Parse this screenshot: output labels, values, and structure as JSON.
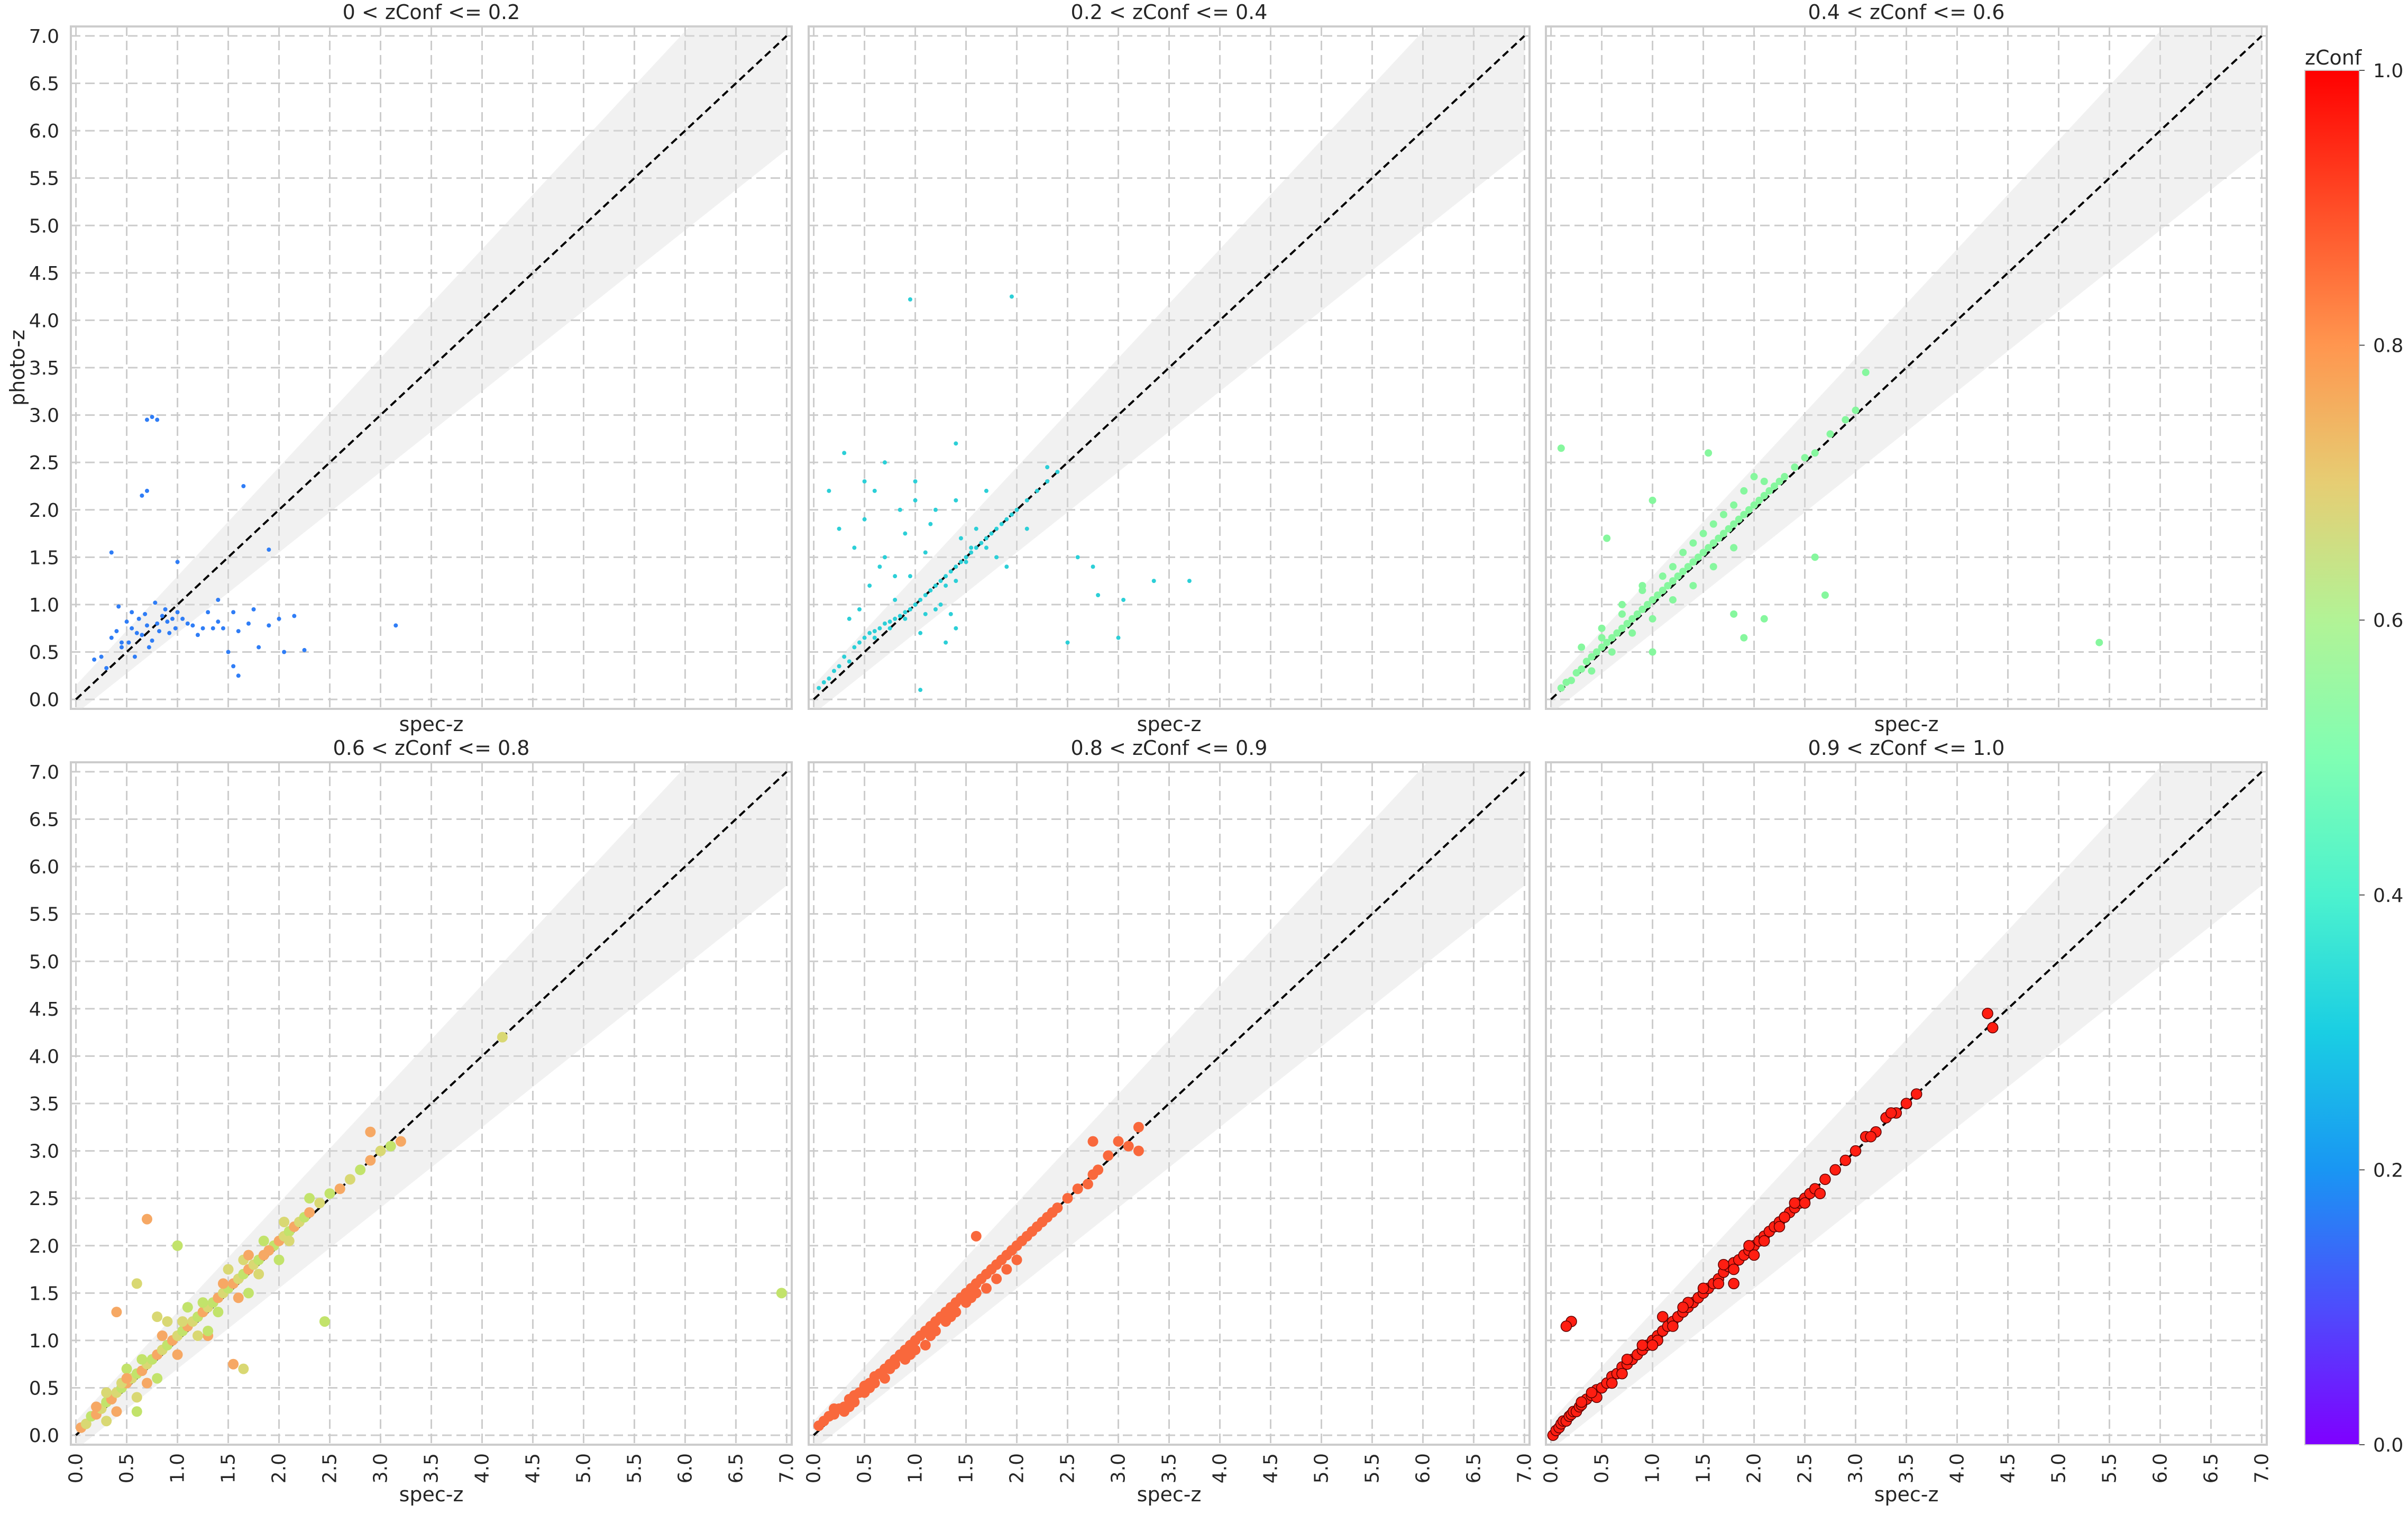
{
  "figure": {
    "colorbar": {
      "label": "zConf",
      "ticks": [
        "0.0",
        "0.2",
        "0.4",
        "0.6",
        "0.8",
        "1.0"
      ],
      "range": [
        0.0,
        1.0
      ],
      "colormap": "rainbow"
    }
  },
  "chart_data": [
    {
      "type": "scatter",
      "title": "0 < zConf <= 0.2",
      "xlabel": "spec-z",
      "ylabel": "photo-z",
      "xlim": [
        -0.05,
        7.05
      ],
      "ylim": [
        -0.1,
        7.1
      ],
      "xticks": [
        "0.0",
        "0.5",
        "1.0",
        "1.5",
        "2.0",
        "2.5",
        "3.0",
        "3.5",
        "4.0",
        "4.5",
        "5.0",
        "5.5",
        "6.0",
        "6.5",
        "7.0"
      ],
      "yticks": [
        "0.0",
        "0.5",
        "1.0",
        "1.5",
        "2.0",
        "2.5",
        "3.0",
        "3.5",
        "4.0",
        "4.5",
        "5.0",
        "5.5",
        "6.0",
        "6.5",
        "7.0"
      ],
      "grid": true,
      "identity_line": true,
      "band": "photo-z = spec-z ± 0.15(1+spec-z)",
      "point_color": "#2f7df6",
      "point_size": "small",
      "x": [
        0.18,
        0.25,
        0.3,
        0.35,
        0.4,
        0.42,
        0.45,
        0.5,
        0.52,
        0.55,
        0.58,
        0.6,
        0.62,
        0.65,
        0.68,
        0.7,
        0.72,
        0.75,
        0.78,
        0.8,
        0.82,
        0.85,
        0.88,
        0.9,
        0.92,
        0.95,
        0.98,
        1.0,
        1.05,
        1.1,
        1.15,
        1.2,
        1.25,
        1.3,
        1.35,
        1.4,
        1.45,
        1.5,
        1.55,
        1.6,
        1.7,
        1.75,
        1.8,
        1.9,
        2.0,
        2.05,
        2.15,
        2.25,
        0.35,
        0.55,
        0.7,
        0.75,
        0.8,
        0.65,
        0.7,
        1.65,
        1.9,
        3.15,
        1.55,
        1.6,
        1.0,
        1.4,
        0.45
      ],
      "y": [
        0.42,
        0.45,
        0.33,
        0.65,
        0.72,
        0.98,
        0.55,
        0.82,
        0.6,
        0.75,
        0.45,
        0.7,
        0.85,
        0.68,
        0.9,
        0.78,
        0.55,
        0.62,
        1.02,
        0.8,
        0.72,
        0.88,
        0.95,
        0.82,
        0.7,
        0.85,
        0.75,
        0.92,
        0.85,
        0.8,
        0.78,
        0.68,
        0.75,
        0.92,
        0.75,
        0.82,
        0.75,
        0.5,
        0.92,
        0.72,
        0.8,
        0.95,
        0.55,
        0.78,
        0.85,
        0.5,
        0.88,
        0.52,
        1.55,
        0.92,
        2.95,
        2.98,
        2.95,
        2.15,
        2.2,
        2.25,
        1.58,
        0.78,
        0.35,
        0.25,
        1.45,
        1.05,
        0.6
      ]
    },
    {
      "type": "scatter",
      "title": "0.2 < zConf <= 0.4",
      "xlabel": "spec-z",
      "ylabel": "",
      "xlim": [
        -0.05,
        7.05
      ],
      "ylim": [
        -0.1,
        7.1
      ],
      "grid": true,
      "identity_line": true,
      "band": "photo-z = spec-z ± 0.15(1+spec-z)",
      "point_color": "#2ccfd7",
      "point_size": "small",
      "x": [
        0.05,
        0.1,
        0.15,
        0.2,
        0.25,
        0.3,
        0.35,
        0.4,
        0.45,
        0.5,
        0.55,
        0.6,
        0.65,
        0.7,
        0.75,
        0.8,
        0.85,
        0.9,
        0.95,
        1.0,
        1.05,
        1.1,
        1.15,
        1.2,
        1.25,
        1.3,
        1.35,
        1.4,
        1.45,
        1.5,
        1.55,
        1.6,
        1.65,
        1.7,
        1.75,
        1.8,
        1.85,
        1.9,
        1.95,
        2.0,
        2.1,
        2.2,
        2.3,
        2.4,
        0.4,
        0.5,
        0.6,
        0.7,
        0.8,
        0.9,
        1.0,
        1.1,
        1.2,
        1.3,
        1.4,
        1.5,
        1.6,
        1.7,
        1.8,
        0.35,
        0.45,
        0.6,
        0.75,
        0.9,
        1.05,
        1.2,
        1.35,
        0.55,
        0.65,
        0.8,
        0.95,
        1.1,
        1.25,
        1.4,
        0.5,
        0.7,
        0.85,
        1.0,
        1.15,
        0.95,
        1.95,
        1.4,
        1.45,
        1.55,
        2.3,
        2.6,
        2.75,
        3.05,
        3.35,
        3.7,
        3.0,
        2.5,
        2.8,
        1.7,
        1.9,
        2.1,
        1.05,
        1.4,
        1.3,
        0.3,
        0.15,
        0.25
      ],
      "y": [
        0.12,
        0.18,
        0.22,
        0.3,
        0.35,
        0.45,
        0.4,
        0.55,
        0.6,
        0.65,
        0.7,
        0.72,
        0.75,
        0.8,
        0.82,
        0.85,
        0.88,
        0.92,
        0.95,
        1.0,
        1.05,
        1.1,
        1.15,
        1.2,
        1.25,
        1.3,
        1.35,
        1.4,
        1.45,
        1.5,
        1.55,
        1.6,
        1.65,
        1.7,
        1.75,
        1.8,
        1.85,
        1.9,
        1.95,
        2.0,
        2.1,
        2.2,
        2.3,
        2.4,
        1.6,
        1.9,
        2.2,
        1.5,
        1.3,
        1.75,
        2.3,
        1.55,
        2.0,
        1.2,
        2.1,
        1.45,
        1.8,
        2.2,
        1.5,
        0.85,
        0.95,
        0.65,
        0.75,
        0.85,
        0.7,
        0.95,
        0.9,
        1.2,
        1.4,
        1.05,
        1.3,
        0.9,
        1.0,
        1.25,
        2.3,
        2.5,
        2.0,
        2.1,
        1.85,
        4.22,
        4.25,
        2.7,
        1.7,
        1.6,
        2.45,
        1.5,
        1.4,
        1.05,
        1.25,
        1.25,
        0.65,
        0.6,
        1.1,
        1.6,
        1.4,
        1.8,
        0.1,
        0.75,
        0.6,
        2.6,
        2.2,
        1.8
      ]
    },
    {
      "type": "scatter",
      "title": "0.4 < zConf <= 0.6",
      "xlabel": "spec-z",
      "ylabel": "",
      "xlim": [
        -0.05,
        7.05
      ],
      "ylim": [
        -0.1,
        7.1
      ],
      "grid": true,
      "identity_line": true,
      "band": "photo-z = spec-z ± 0.15(1+spec-z)",
      "point_color": "#86f79e",
      "point_size": "medium",
      "x": [
        0.1,
        0.15,
        0.2,
        0.25,
        0.3,
        0.35,
        0.4,
        0.45,
        0.5,
        0.55,
        0.6,
        0.65,
        0.7,
        0.75,
        0.8,
        0.85,
        0.9,
        0.95,
        1.0,
        1.05,
        1.1,
        1.15,
        1.2,
        1.25,
        1.3,
        1.35,
        1.4,
        1.45,
        1.5,
        1.55,
        1.6,
        1.65,
        1.7,
        1.75,
        1.8,
        1.85,
        1.9,
        1.95,
        2.0,
        2.05,
        2.1,
        2.15,
        2.2,
        2.25,
        2.3,
        2.4,
        2.5,
        2.6,
        2.75,
        2.9,
        3.0,
        3.1,
        0.3,
        0.5,
        0.7,
        0.9,
        1.1,
        1.3,
        1.5,
        1.7,
        1.9,
        2.1,
        0.4,
        0.6,
        0.8,
        1.0,
        1.2,
        1.4,
        1.6,
        1.8,
        0.5,
        0.7,
        0.9,
        1.2,
        1.4,
        1.6,
        1.8,
        2.0,
        0.1,
        0.55,
        1.0,
        1.55,
        1.0,
        2.1,
        2.6,
        2.7,
        5.4,
        1.8,
        1.9
      ],
      "y": [
        0.12,
        0.18,
        0.2,
        0.28,
        0.32,
        0.4,
        0.45,
        0.5,
        0.55,
        0.6,
        0.65,
        0.7,
        0.75,
        0.8,
        0.85,
        0.9,
        0.95,
        1.0,
        1.05,
        1.1,
        1.15,
        1.2,
        1.25,
        1.3,
        1.35,
        1.4,
        1.45,
        1.5,
        1.55,
        1.6,
        1.65,
        1.7,
        1.75,
        1.8,
        1.85,
        1.9,
        1.95,
        2.0,
        2.05,
        2.1,
        2.15,
        2.2,
        2.25,
        2.3,
        2.35,
        2.45,
        2.55,
        2.6,
        2.8,
        2.95,
        3.05,
        3.45,
        0.55,
        0.65,
        0.9,
        1.15,
        1.3,
        1.55,
        1.75,
        1.95,
        2.2,
        2.3,
        0.3,
        0.5,
        0.7,
        0.85,
        1.05,
        1.2,
        1.4,
        1.6,
        0.75,
        1.0,
        1.2,
        1.4,
        1.65,
        1.85,
        2.05,
        2.35,
        2.65,
        1.7,
        2.1,
        2.6,
        0.5,
        0.85,
        1.5,
        1.1,
        0.6,
        0.9,
        0.65
      ]
    },
    {
      "type": "scatter",
      "title": "0.6 < zConf <= 0.8",
      "xlabel": "spec-z",
      "ylabel": "",
      "xlim": [
        -0.05,
        7.05
      ],
      "ylim": [
        -0.1,
        7.1
      ],
      "grid": true,
      "identity_line": true,
      "band": "photo-z = spec-z ± 0.15(1+spec-z)",
      "point_colors": [
        "#f6a864",
        "#d9d873",
        "#c2e36b"
      ],
      "point_size": "large",
      "x": [
        0.05,
        0.1,
        0.15,
        0.2,
        0.25,
        0.3,
        0.35,
        0.4,
        0.45,
        0.5,
        0.55,
        0.6,
        0.65,
        0.7,
        0.75,
        0.8,
        0.85,
        0.9,
        0.95,
        1.0,
        1.05,
        1.1,
        1.15,
        1.2,
        1.25,
        1.3,
        1.35,
        1.4,
        1.45,
        1.5,
        1.55,
        1.6,
        1.65,
        1.7,
        1.75,
        1.8,
        1.85,
        1.9,
        1.95,
        2.0,
        2.05,
        2.1,
        2.15,
        2.2,
        2.25,
        2.3,
        2.4,
        2.5,
        2.6,
        2.7,
        2.8,
        2.9,
        3.0,
        3.1,
        3.2,
        0.3,
        0.5,
        0.7,
        0.9,
        1.1,
        1.3,
        1.5,
        1.7,
        1.9,
        2.1,
        2.3,
        0.4,
        0.6,
        0.8,
        1.0,
        1.2,
        1.4,
        1.6,
        1.8,
        2.0,
        0.2,
        0.45,
        0.65,
        0.85,
        1.05,
        1.25,
        1.45,
        1.65,
        1.85,
        0.7,
        0.6,
        1.0,
        0.4,
        0.3,
        0.6,
        1.55,
        1.65,
        2.45,
        2.9,
        4.2,
        6.95,
        0.5,
        0.8,
        1.3,
        1.7,
        2.05
      ],
      "y": [
        0.08,
        0.12,
        0.2,
        0.22,
        0.28,
        0.35,
        0.38,
        0.45,
        0.5,
        0.55,
        0.6,
        0.65,
        0.68,
        0.75,
        0.8,
        0.85,
        0.9,
        0.95,
        1.0,
        1.05,
        1.1,
        1.15,
        1.2,
        1.25,
        1.3,
        1.35,
        1.4,
        1.45,
        1.5,
        1.55,
        1.6,
        1.65,
        1.7,
        1.75,
        1.8,
        1.85,
        1.9,
        1.95,
        2.0,
        2.05,
        2.1,
        2.15,
        2.2,
        2.25,
        2.3,
        2.35,
        2.45,
        2.55,
        2.6,
        2.7,
        2.8,
        2.9,
        3.0,
        3.05,
        3.1,
        0.45,
        0.7,
        0.55,
        1.2,
        1.35,
        1.05,
        1.75,
        1.5,
        1.95,
        2.05,
        2.5,
        0.25,
        0.4,
        0.6,
        0.85,
        1.05,
        1.3,
        1.45,
        1.7,
        1.85,
        0.3,
        0.55,
        0.8,
        1.05,
        1.2,
        1.4,
        1.6,
        1.85,
        2.05,
        2.28,
        1.6,
        2.0,
        1.3,
        0.15,
        0.25,
        0.75,
        0.7,
        1.2,
        3.2,
        4.2,
        1.5,
        0.6,
        1.25,
        1.1,
        1.9,
        2.25
      ]
    },
    {
      "type": "scatter",
      "title": "0.8 < zConf <= 0.9",
      "xlabel": "spec-z",
      "ylabel": "",
      "xlim": [
        -0.05,
        7.05
      ],
      "ylim": [
        -0.1,
        7.1
      ],
      "grid": true,
      "identity_line": true,
      "band": "photo-z = spec-z ± 0.15(1+spec-z)",
      "point_color": "#f9683c",
      "point_size": "large",
      "x": [
        0.05,
        0.1,
        0.15,
        0.2,
        0.25,
        0.3,
        0.35,
        0.4,
        0.45,
        0.5,
        0.55,
        0.6,
        0.65,
        0.7,
        0.75,
        0.8,
        0.85,
        0.9,
        0.95,
        1.0,
        1.05,
        1.1,
        1.15,
        1.2,
        1.25,
        1.3,
        1.35,
        1.4,
        1.45,
        1.5,
        1.55,
        1.6,
        1.65,
        1.7,
        1.75,
        1.8,
        1.85,
        1.9,
        1.95,
        2.0,
        2.05,
        2.1,
        2.15,
        2.2,
        2.25,
        2.3,
        2.35,
        2.4,
        2.5,
        2.6,
        2.7,
        2.75,
        2.8,
        2.9,
        3.0,
        3.1,
        3.2,
        0.2,
        0.4,
        0.6,
        0.8,
        1.0,
        1.2,
        1.4,
        1.6,
        1.8,
        2.0,
        0.3,
        0.5,
        0.7,
        0.9,
        1.1,
        1.3,
        1.5,
        1.7,
        1.9,
        0.15,
        0.35,
        0.55,
        0.75,
        0.95,
        1.15,
        1.35,
        1.55,
        2.75,
        3.2,
        1.6
      ],
      "y": [
        0.1,
        0.15,
        0.2,
        0.22,
        0.28,
        0.3,
        0.38,
        0.42,
        0.45,
        0.52,
        0.55,
        0.62,
        0.65,
        0.7,
        0.75,
        0.8,
        0.85,
        0.9,
        0.95,
        1.0,
        1.05,
        1.1,
        1.15,
        1.2,
        1.25,
        1.3,
        1.35,
        1.4,
        1.45,
        1.5,
        1.55,
        1.6,
        1.65,
        1.7,
        1.75,
        1.8,
        1.85,
        1.9,
        1.95,
        2.0,
        2.05,
        2.1,
        2.15,
        2.2,
        2.25,
        2.3,
        2.35,
        2.4,
        2.5,
        2.6,
        2.65,
        2.75,
        2.8,
        2.95,
        3.1,
        3.05,
        3.25,
        0.28,
        0.35,
        0.55,
        0.75,
        0.9,
        1.1,
        1.3,
        1.5,
        1.65,
        1.85,
        0.25,
        0.45,
        0.6,
        0.8,
        0.95,
        1.2,
        1.4,
        1.55,
        1.75,
        0.2,
        0.3,
        0.5,
        0.7,
        0.85,
        1.05,
        1.25,
        1.45,
        3.1,
        3.0,
        2.1
      ]
    },
    {
      "type": "scatter",
      "title": "0.9 < zConf <= 1.0",
      "xlabel": "spec-z",
      "ylabel": "",
      "xlim": [
        -0.05,
        7.05
      ],
      "ylim": [
        -0.1,
        7.1
      ],
      "grid": true,
      "identity_line": true,
      "band": "photo-z = spec-z ± 0.15(1+spec-z)",
      "point_color": "#ff1e12",
      "point_edge": "#5a0000",
      "point_size": "large",
      "x": [
        0.02,
        0.05,
        0.08,
        0.1,
        0.12,
        0.15,
        0.18,
        0.2,
        0.22,
        0.25,
        0.28,
        0.3,
        0.35,
        0.4,
        0.45,
        0.5,
        0.55,
        0.6,
        0.65,
        0.7,
        0.75,
        0.8,
        0.85,
        0.9,
        0.95,
        1.0,
        1.05,
        1.1,
        1.15,
        1.2,
        1.25,
        1.3,
        1.35,
        1.4,
        1.45,
        1.5,
        1.55,
        1.6,
        1.65,
        1.7,
        1.75,
        1.8,
        1.85,
        1.9,
        1.95,
        2.0,
        2.05,
        2.1,
        2.15,
        2.2,
        2.25,
        2.3,
        2.35,
        2.4,
        2.45,
        2.5,
        2.55,
        2.6,
        2.7,
        2.8,
        2.9,
        3.0,
        3.1,
        3.2,
        3.3,
        3.4,
        3.5,
        3.6,
        4.3,
        4.35,
        0.3,
        0.6,
        0.9,
        1.2,
        1.5,
        1.8,
        2.1,
        2.4,
        2.65,
        0.45,
        0.75,
        1.05,
        1.35,
        1.65,
        1.95,
        2.25,
        2.5,
        0.4,
        0.7,
        1.0,
        1.3,
        1.7,
        2.0,
        2.3,
        3.15,
        3.35,
        0.2,
        0.15,
        1.1,
        1.8
      ],
      "y": [
        0.0,
        0.05,
        0.08,
        0.12,
        0.15,
        0.15,
        0.2,
        0.22,
        0.25,
        0.25,
        0.3,
        0.32,
        0.38,
        0.42,
        0.48,
        0.5,
        0.55,
        0.62,
        0.65,
        0.72,
        0.75,
        0.8,
        0.85,
        0.9,
        0.95,
        1.0,
        1.05,
        1.1,
        1.15,
        1.2,
        1.25,
        1.3,
        1.35,
        1.4,
        1.45,
        1.5,
        1.55,
        1.6,
        1.65,
        1.72,
        1.78,
        1.82,
        1.85,
        1.9,
        1.95,
        2.0,
        2.05,
        2.1,
        2.15,
        2.2,
        2.25,
        2.3,
        2.35,
        2.4,
        2.45,
        2.5,
        2.55,
        2.6,
        2.7,
        2.8,
        2.9,
        3.0,
        3.15,
        3.2,
        3.35,
        3.4,
        3.5,
        3.6,
        4.45,
        4.3,
        0.35,
        0.55,
        0.95,
        1.15,
        1.55,
        1.75,
        2.05,
        2.45,
        2.55,
        0.4,
        0.8,
        1.0,
        1.4,
        1.6,
        2.0,
        2.2,
        2.45,
        0.45,
        0.65,
        0.95,
        1.35,
        1.8,
        1.9,
        2.3,
        3.15,
        3.4,
        1.2,
        1.15,
        1.25,
        1.6
      ]
    }
  ]
}
